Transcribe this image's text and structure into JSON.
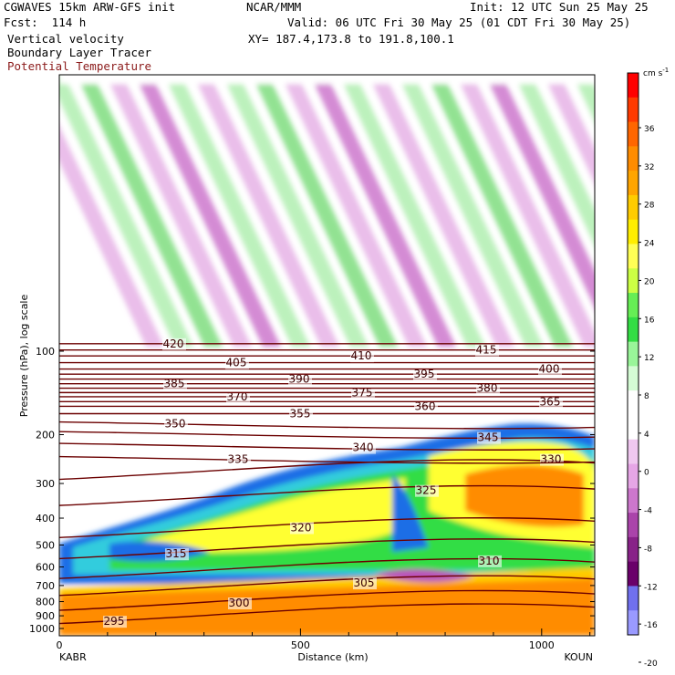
{
  "header": {
    "model": "CGWAVES 15km ARW-GFS init",
    "org": "NCAR/MMM",
    "init": "Init: 12 UTC Sun 25 May 25",
    "fcst": "Fcst:  114 h",
    "valid": "Valid: 06 UTC Fri 30 May 25 (01 CDT Fri 30 May 25)",
    "line_vv": "Vertical velocity",
    "line_blt": "Boundary Layer Tracer",
    "line_pt": "Potential Temperature",
    "xy": "XY= 187.4,173.8 to 191.8,100.1"
  },
  "chart_data": {
    "type": "heatmap",
    "xlabel": "Distance (km)",
    "ylabel": "Pressure (hPa), log scale",
    "x_ticks": [
      0,
      500,
      1000
    ],
    "y_ticks": [
      100,
      200,
      300,
      400,
      500,
      600,
      700,
      800,
      900,
      1000
    ],
    "endpoints": {
      "left": "KABR",
      "right": "KOUN"
    },
    "colorbar": {
      "units": "cm s",
      "units_exp": "-1",
      "labels": [
        36,
        32,
        28,
        24,
        20,
        16,
        12,
        8,
        4,
        0,
        -4,
        -8,
        -12,
        -16,
        -20
      ],
      "colors": [
        "#ff0000",
        "#ff3a00",
        "#ff6600",
        "#ff8c00",
        "#ffa500",
        "#ffcc00",
        "#ffee00",
        "#ffff55",
        "#ccff44",
        "#66ee55",
        "#33dd44",
        "#99f599",
        "#d5fcd5",
        "#ffffff",
        "#ffffff",
        "#f0c8f0",
        "#e6a6e6",
        "#cc77cc",
        "#aa44aa",
        "#882288",
        "#6a006a",
        "#7070ee",
        "#9a9aff"
      ]
    },
    "theta_contours": [
      {
        "label": "295",
        "p": 960
      },
      {
        "label": "300",
        "p": 860
      },
      {
        "label": "305",
        "p": 760
      },
      {
        "label": "310",
        "p": 660
      },
      {
        "label": "315",
        "p": 560
      },
      {
        "label": "320",
        "p": 470
      },
      {
        "label": "325",
        "p": 360
      },
      {
        "label": "330",
        "p": 290
      },
      {
        "label": "335",
        "p": 240
      },
      {
        "label": "340",
        "p": 215
      },
      {
        "label": "345",
        "p": 195
      },
      {
        "label": "350",
        "p": 180
      },
      {
        "label": "355",
        "p": 168
      },
      {
        "label": "360",
        "p": 158
      },
      {
        "label": "365",
        "p": 152
      },
      {
        "label": "370",
        "p": 146
      },
      {
        "label": "375",
        "p": 141
      },
      {
        "label": "380",
        "p": 136
      },
      {
        "label": "385",
        "p": 131
      },
      {
        "label": "390",
        "p": 126
      },
      {
        "label": "395",
        "p": 121
      },
      {
        "label": "400",
        "p": 116
      },
      {
        "label": "405",
        "p": 110
      },
      {
        "label": "410",
        "p": 104
      },
      {
        "label": "415",
        "p": 99
      },
      {
        "label": "420",
        "p": 94
      }
    ]
  }
}
